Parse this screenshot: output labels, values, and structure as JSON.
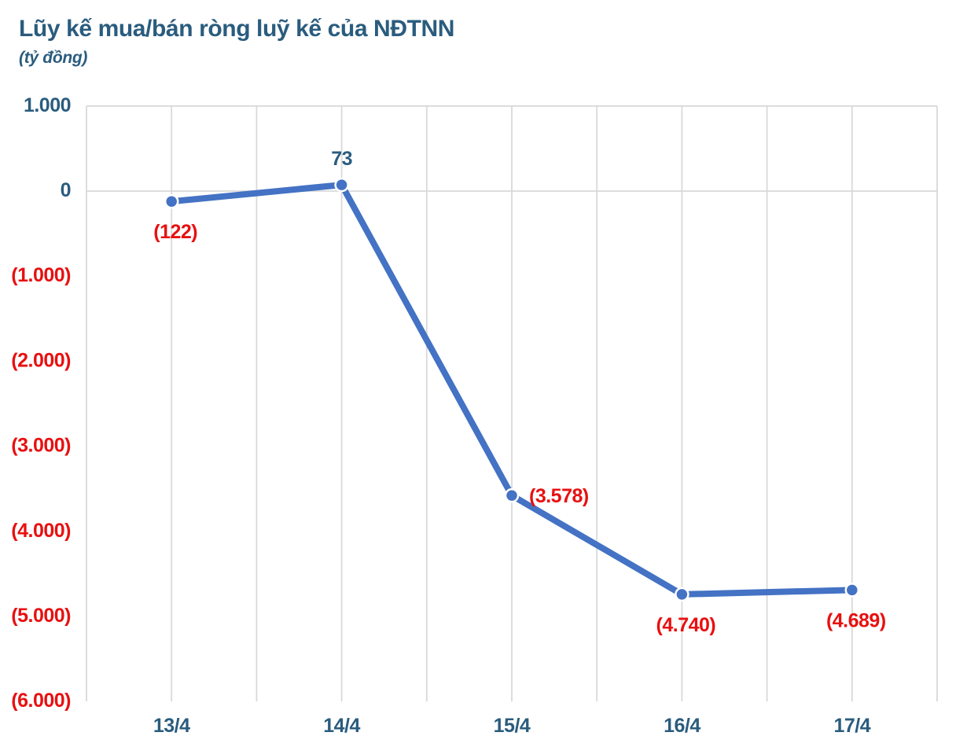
{
  "page": {
    "title": "Lũy kế mua/bán ròng luỹ kế của NĐTNN",
    "subtitle": "(tỷ đồng)"
  },
  "colors": {
    "line_blue": "#4472C4",
    "text_blue": "#2A5C7E",
    "negative_red": "#E81010",
    "gridline": "#D9D9D9",
    "background": "#FFFFFF",
    "marker_ring": "#FFFFFF"
  },
  "chart_data": {
    "type": "line",
    "title": "Lũy kế mua/bán ròng luỹ kế của NĐTNN",
    "unit_label": "(tỷ đồng)",
    "xlabel": "",
    "ylabel": "tỷ đồng",
    "categories": [
      "13/4",
      "14/4",
      "15/4",
      "16/4",
      "17/4"
    ],
    "series": [
      {
        "name": "Lũy kế mua/bán ròng của NĐTNN",
        "values": [
          -122,
          73,
          -3578,
          -4740,
          -4689
        ]
      }
    ],
    "data_labels": [
      {
        "text": "(122)",
        "position": "below",
        "tone": "red"
      },
      {
        "text": "73",
        "position": "above",
        "tone": "blue"
      },
      {
        "text": "(3.578)",
        "position": "right",
        "tone": "red"
      },
      {
        "text": "(4.740)",
        "position": "below",
        "tone": "red"
      },
      {
        "text": "(4.689)",
        "position": "below",
        "tone": "red"
      }
    ],
    "y_ticks": [
      {
        "value": 1000,
        "label": "1.000",
        "tone": "blue"
      },
      {
        "value": 0,
        "label": "0",
        "tone": "blue"
      },
      {
        "value": -1000,
        "label": "(1.000)",
        "tone": "red"
      },
      {
        "value": -2000,
        "label": "(2.000)",
        "tone": "red"
      },
      {
        "value": -3000,
        "label": "(3.000)",
        "tone": "red"
      },
      {
        "value": -4000,
        "label": "(4.000)",
        "tone": "red"
      },
      {
        "value": -5000,
        "label": "(5.000)",
        "tone": "red"
      },
      {
        "value": -6000,
        "label": "(6.000)",
        "tone": "red"
      }
    ],
    "ylim": [
      -6000,
      1000
    ],
    "grid": {
      "vertical": true,
      "vertical_per_category": 2,
      "horizontal_lines_at": [
        1000,
        0
      ]
    },
    "legend": "none"
  }
}
